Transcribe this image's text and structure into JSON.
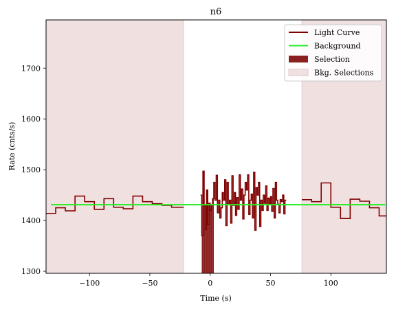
{
  "chart_data": {
    "type": "line",
    "title": "n6",
    "xlabel": "Time (s)",
    "ylabel": "Rate (cnts/s)",
    "xlim": [
      -136,
      146
    ],
    "ylim": [
      1296,
      1795
    ],
    "xticks": [
      -100,
      -50,
      0,
      50,
      100
    ],
    "yticks": [
      1300,
      1400,
      1500,
      1600,
      1700
    ],
    "grid": false,
    "legend_position": "top-right",
    "colors": {
      "light_curve": "#800000",
      "background": "#22ee22",
      "selection": "#8b2020",
      "bkg_selection": "#f0e0e0",
      "bkg_selection_edge": "#e4cccc"
    },
    "legend": [
      {
        "key": "light_curve",
        "label": "Light Curve",
        "kind": "line"
      },
      {
        "key": "background",
        "label": "Background",
        "kind": "line"
      },
      {
        "key": "selection",
        "label": "Selection",
        "kind": "patch"
      },
      {
        "key": "bkg_selection",
        "label": "Bkg. Selections",
        "kind": "patch"
      }
    ],
    "background_level": 1431,
    "background_x_range": [
      -132,
      145
    ],
    "bkg_selections": [
      [
        -136,
        -22
      ],
      [
        76,
        146
      ]
    ],
    "source_selection": [
      -7,
      3
    ],
    "light_curve_left": {
      "edges": [
        -136,
        -128,
        -120,
        -112,
        -104,
        -96,
        -88,
        -80,
        -72,
        -64,
        -56,
        -48,
        -40,
        -32,
        -22
      ],
      "rates": [
        1414,
        1425,
        1419,
        1448,
        1437,
        1422,
        1443,
        1426,
        1423,
        1448,
        1437,
        1433,
        1430,
        1426
      ]
    },
    "light_curve_mid": {
      "start": -8,
      "step": 1,
      "rates": [
        1450,
        1370,
        1497,
        1430,
        1382,
        1460,
        1392,
        1434,
        1420,
        1430,
        1443,
        1475,
        1440,
        1489,
        1415,
        1440,
        1405,
        1425,
        1455,
        1440,
        1480,
        1390,
        1475,
        1432,
        1440,
        1395,
        1488,
        1430,
        1455,
        1410,
        1445,
        1422,
        1490,
        1440,
        1462,
        1403,
        1450,
        1475,
        1460,
        1490,
        1412,
        1440,
        1452,
        1405,
        1495,
        1381,
        1465,
        1450,
        1475,
        1388,
        1440,
        1420,
        1450,
        1434,
        1468,
        1420,
        1444,
        1432,
        1447,
        1418,
        1463,
        1405,
        1475,
        1440,
        1432,
        1415,
        1441,
        1437,
        1450,
        1413,
        1440
      ]
    },
    "light_curve_right": {
      "edges": [
        76,
        84,
        92,
        100,
        108,
        116,
        124,
        132,
        140,
        146
      ],
      "rates": [
        1441,
        1437,
        1474,
        1426,
        1404,
        1442,
        1438,
        1425,
        1409
      ]
    }
  }
}
